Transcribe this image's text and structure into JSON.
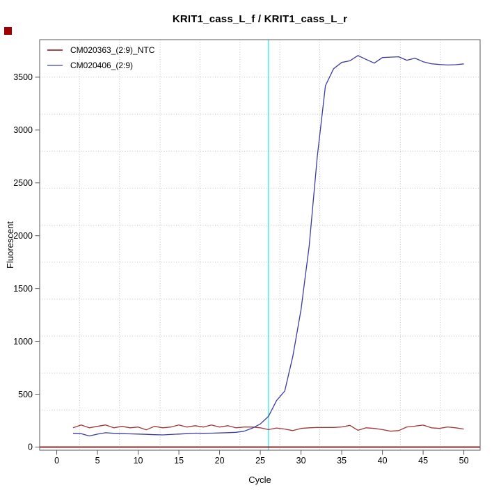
{
  "marker": {
    "color": "#a00000"
  },
  "chart_data": {
    "type": "line",
    "title": "KRIT1_cass_L_f / KRIT1_cass_L_r",
    "xlabel": "Cycle",
    "ylabel": "Fluorescent",
    "xlim": [
      -2.1,
      52
    ],
    "ylim": [
      -30,
      3855
    ],
    "x_ticks": [
      0,
      5,
      10,
      15,
      20,
      25,
      30,
      35,
      40,
      45,
      50
    ],
    "y_ticks": [
      0,
      500,
      1000,
      1500,
      2000,
      2500,
      3000,
      3500
    ],
    "grid": {
      "color": "#c2c2c2",
      "v_lines_cycles": [
        2.8,
        7.7,
        12.7,
        17.6,
        22.5,
        27.4,
        32.3,
        37.2,
        42.2,
        47.1
      ],
      "h_lines_values": [
        350,
        700,
        1050,
        1400,
        1750,
        2100,
        2450,
        2800,
        3150,
        3500
      ]
    },
    "threshold_line": {
      "x": 26,
      "color": "#6fe9e9"
    },
    "zero_line": {
      "y": 0,
      "color": "#8d2828"
    },
    "axis_color": "#5a5a5a",
    "legend_position": "top-left",
    "cycles_start": 2,
    "cycles_end": 50,
    "cycles_step": 1,
    "series": [
      {
        "name": "CM020363_(2:9)_NTC",
        "color": "#a03636",
        "legend_color": "#a04848",
        "values": [
          182,
          209,
          182,
          196,
          209,
          182,
          196,
          182,
          189,
          163,
          196,
          182,
          189,
          209,
          189,
          202,
          189,
          209,
          189,
          202,
          182,
          189,
          189,
          182,
          165,
          180,
          170,
          156,
          176,
          182,
          185,
          185,
          185,
          190,
          205,
          158,
          182,
          176,
          165,
          150,
          156,
          190,
          198,
          208,
          182,
          176,
          190,
          182,
          170
        ]
      },
      {
        "name": "CM020406_(2:9)",
        "color": "#3b3ba0",
        "legend_color": "#8888cc",
        "values": [
          130,
          126,
          105,
          122,
          135,
          130,
          127,
          125,
          123,
          120,
          117,
          115,
          119,
          123,
          127,
          131,
          130,
          131,
          133,
          136,
          139,
          150,
          178,
          218,
          290,
          440,
          530,
          860,
          1300,
          1900,
          2750,
          3420,
          3580,
          3640,
          3655,
          3705,
          3668,
          3633,
          3686,
          3690,
          3693,
          3660,
          3680,
          3646,
          3627,
          3620,
          3615,
          3618,
          3626
        ]
      }
    ]
  }
}
